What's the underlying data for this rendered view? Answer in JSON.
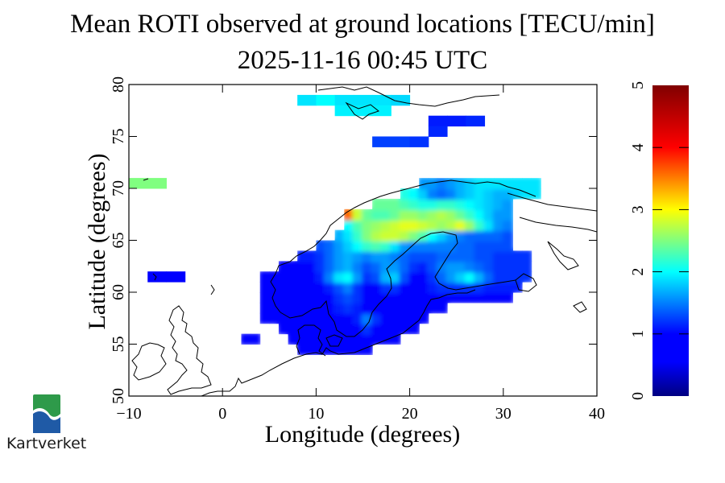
{
  "chart_data": {
    "type": "heatmap",
    "title": "Mean ROTI observed at ground locations [TECU/min]",
    "subtitle": "2025-11-16 00:45 UTC",
    "xlabel": "Longitude (degrees)",
    "ylabel": "Latitude (degrees)",
    "xlim": [
      -10,
      40
    ],
    "ylim": [
      50,
      80
    ],
    "xticks": [
      "−10",
      "0",
      "10",
      "20",
      "30",
      "40"
    ],
    "xtick_values": [
      -10,
      0,
      10,
      20,
      30,
      40
    ],
    "yticks": [
      "50",
      "55",
      "60",
      "65",
      "70",
      "75",
      "80"
    ],
    "ytick_values": [
      50,
      55,
      60,
      65,
      70,
      75,
      80
    ],
    "colorbar": {
      "range": [
        0,
        5
      ],
      "ticks": [
        "0",
        "1",
        "2",
        "3",
        "4",
        "5"
      ],
      "tick_values": [
        0,
        1,
        2,
        3,
        4,
        5
      ],
      "colormap": "jet"
    },
    "cell_size": {
      "dlon": 2,
      "dlat": 1
    },
    "cells": [
      {
        "lon": 8,
        "lat": 78,
        "v": 1.9
      },
      {
        "lon": 10,
        "lat": 78,
        "v": 2.0
      },
      {
        "lon": 12,
        "lat": 78,
        "v": 1.9
      },
      {
        "lon": 14,
        "lat": 78,
        "v": 1.9
      },
      {
        "lon": 16,
        "lat": 78,
        "v": 1.9
      },
      {
        "lon": 18,
        "lat": 78,
        "v": 1.85
      },
      {
        "lon": 12,
        "lat": 77,
        "v": 1.95
      },
      {
        "lon": 14,
        "lat": 77,
        "v": 1.95
      },
      {
        "lon": 16,
        "lat": 77,
        "v": 1.95
      },
      {
        "lon": 22,
        "lat": 76,
        "v": 1.1
      },
      {
        "lon": 24,
        "lat": 76,
        "v": 1.1
      },
      {
        "lon": 26,
        "lat": 76,
        "v": 1.15
      },
      {
        "lon": 22,
        "lat": 75,
        "v": 1.15
      },
      {
        "lon": 16,
        "lat": 74,
        "v": 1.25
      },
      {
        "lon": 18,
        "lat": 74,
        "v": 1.25
      },
      {
        "lon": 20,
        "lat": 74,
        "v": 1.2
      },
      {
        "lon": -10,
        "lat": 70,
        "v": 2.5
      },
      {
        "lon": -8,
        "lat": 70,
        "v": 2.5
      },
      {
        "lon": -8,
        "lat": 61,
        "v": 0.9
      },
      {
        "lon": -6,
        "lat": 61,
        "v": 0.9
      }
    ],
    "field": {
      "lon_start": 2,
      "lon_step": 1,
      "lat_start": 54,
      "lat_step": 1,
      "grid_note": "rows from lat 54 (bottom) to lat 70 (top); columns lon 2..33; null = no data",
      "rows": [
        [
          null,
          null,
          null,
          null,
          null,
          null,
          0.6,
          0.6,
          0.6,
          0.6,
          0.6,
          0.6,
          0.6,
          0.6,
          null,
          null,
          null,
          null,
          null,
          null,
          null,
          null,
          null,
          null,
          null,
          null,
          null,
          null,
          null,
          null,
          null,
          null
        ],
        [
          0.9,
          0.9,
          null,
          null,
          null,
          0.6,
          0.6,
          0.6,
          0.6,
          0.7,
          0.7,
          0.7,
          0.7,
          0.8,
          0.8,
          0.8,
          0.8,
          null,
          null,
          null,
          null,
          null,
          null,
          null,
          null,
          null,
          null,
          null,
          null,
          null,
          null,
          null
        ],
        [
          null,
          null,
          null,
          null,
          0.6,
          0.6,
          0.6,
          0.6,
          0.6,
          0.7,
          0.7,
          0.8,
          0.9,
          1.2,
          1.0,
          0.9,
          0.9,
          0.9,
          0.9,
          null,
          null,
          null,
          null,
          null,
          null,
          null,
          null,
          null,
          null,
          null,
          null,
          null
        ],
        [
          null,
          null,
          0.7,
          0.7,
          0.6,
          0.6,
          0.6,
          0.6,
          0.7,
          0.8,
          0.9,
          1.0,
          1.1,
          1.5,
          1.2,
          1.0,
          0.9,
          0.9,
          0.9,
          0.9,
          null,
          null,
          null,
          null,
          null,
          null,
          null,
          null,
          null,
          null,
          null,
          null
        ],
        [
          null,
          null,
          0.7,
          0.7,
          0.6,
          0.6,
          0.7,
          0.7,
          0.8,
          0.9,
          1.1,
          1.2,
          1.1,
          1.0,
          0.9,
          0.9,
          0.9,
          0.9,
          0.9,
          0.9,
          0.9,
          0.9,
          null,
          null,
          null,
          null,
          null,
          null,
          null,
          null,
          null,
          null
        ],
        [
          null,
          null,
          0.7,
          0.7,
          0.7,
          0.7,
          0.7,
          0.8,
          0.9,
          1.0,
          1.2,
          1.3,
          1.2,
          1.0,
          0.9,
          0.8,
          0.8,
          0.8,
          0.8,
          0.9,
          0.9,
          1.0,
          1.0,
          1.0,
          1.0,
          1.0,
          1.0,
          1.0,
          1.0,
          null,
          null,
          null
        ],
        [
          null,
          null,
          0.7,
          0.7,
          0.7,
          0.7,
          0.7,
          0.8,
          0.9,
          1.1,
          1.3,
          1.5,
          1.2,
          1.0,
          1.0,
          1.2,
          1.2,
          1.0,
          0.9,
          1.0,
          1.1,
          1.2,
          1.2,
          1.2,
          1.2,
          1.2,
          1.1,
          1.1,
          1.1,
          1.1,
          null,
          null
        ],
        [
          null,
          null,
          0.8,
          0.8,
          0.8,
          0.8,
          0.8,
          0.9,
          1.1,
          1.5,
          1.9,
          2.0,
          1.6,
          1.2,
          1.3,
          1.7,
          1.8,
          1.3,
          1.0,
          1.0,
          1.2,
          1.4,
          1.6,
          1.8,
          2.0,
          1.7,
          1.4,
          1.2,
          1.2,
          1.2,
          1.2,
          null
        ],
        [
          null,
          null,
          null,
          null,
          0.9,
          0.9,
          0.9,
          1.0,
          1.2,
          1.4,
          1.6,
          1.7,
          1.5,
          1.3,
          1.4,
          1.6,
          1.6,
          1.4,
          1.2,
          1.1,
          1.3,
          1.5,
          1.6,
          1.6,
          1.5,
          1.4,
          1.3,
          1.2,
          1.2,
          1.2,
          1.2,
          null
        ],
        [
          null,
          null,
          null,
          null,
          null,
          null,
          1.1,
          1.1,
          1.2,
          1.4,
          1.6,
          1.7,
          1.6,
          1.5,
          1.6,
          1.6,
          1.5,
          1.4,
          1.3,
          1.3,
          1.3,
          1.4,
          1.4,
          1.4,
          1.4,
          1.3,
          1.3,
          1.2,
          1.2,
          1.2,
          1.2,
          null
        ],
        [
          null,
          null,
          null,
          null,
          null,
          null,
          null,
          null,
          1.3,
          1.4,
          1.6,
          1.8,
          2.0,
          2.2,
          2.3,
          2.2,
          1.9,
          1.6,
          1.5,
          1.5,
          1.5,
          1.5,
          1.5,
          1.4,
          1.4,
          1.3,
          1.3,
          1.3,
          1.3,
          null,
          null,
          null
        ],
        [
          null,
          null,
          null,
          null,
          null,
          null,
          null,
          null,
          null,
          null,
          1.7,
          1.9,
          2.2,
          2.5,
          2.7,
          2.8,
          2.8,
          2.7,
          2.5,
          2.3,
          2.0,
          1.8,
          1.6,
          1.5,
          1.4,
          1.4,
          1.4,
          1.4,
          1.3,
          null,
          null,
          null
        ],
        [
          null,
          null,
          null,
          null,
          null,
          null,
          null,
          null,
          null,
          null,
          null,
          2.0,
          2.3,
          2.5,
          2.6,
          2.7,
          2.8,
          2.9,
          2.9,
          2.8,
          2.7,
          2.6,
          2.7,
          2.9,
          2.6,
          2.2,
          1.9,
          1.6,
          1.5,
          null,
          null,
          null
        ],
        [
          null,
          null,
          null,
          null,
          null,
          null,
          null,
          null,
          null,
          null,
          null,
          3.6,
          2.8,
          2.4,
          2.3,
          2.3,
          2.4,
          2.6,
          2.6,
          2.5,
          2.6,
          2.7,
          2.6,
          2.4,
          2.2,
          2.0,
          1.8,
          1.6,
          1.6,
          null,
          null,
          null
        ],
        [
          null,
          null,
          null,
          null,
          null,
          null,
          null,
          null,
          null,
          null,
          null,
          null,
          null,
          null,
          2.4,
          2.4,
          2.4,
          2.3,
          2.2,
          2.1,
          2.1,
          2.2,
          2.2,
          2.1,
          2.0,
          1.9,
          1.8,
          1.7,
          1.6,
          null,
          null,
          null
        ],
        [
          null,
          null,
          null,
          null,
          null,
          null,
          null,
          null,
          null,
          null,
          null,
          null,
          null,
          null,
          null,
          null,
          null,
          2.1,
          2.0,
          1.8,
          1.5,
          1.4,
          1.5,
          1.7,
          1.8,
          1.9,
          1.8,
          1.7,
          1.7,
          1.8,
          1.9,
          1.9
        ],
        [
          null,
          null,
          null,
          null,
          null,
          null,
          null,
          null,
          null,
          null,
          null,
          null,
          null,
          null,
          null,
          null,
          null,
          null,
          null,
          1.6,
          1.6,
          1.5,
          1.6,
          1.7,
          1.8,
          1.9,
          1.9,
          1.9,
          1.9,
          1.9,
          1.9,
          1.9
        ]
      ]
    }
  },
  "logo": {
    "name": "Kartverket",
    "text": "Kartverket",
    "colors": {
      "green": "#2e9a4a",
      "blue": "#1f5aa6"
    }
  }
}
